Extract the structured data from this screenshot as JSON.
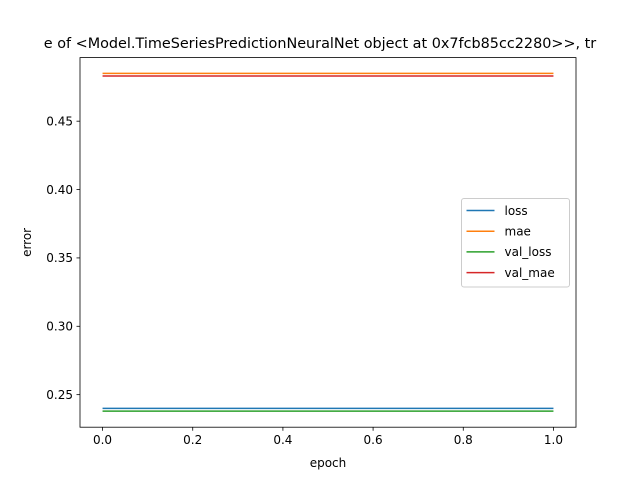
{
  "chart_data": {
    "type": "line",
    "title": "e of <Model.TimeSeriesPredictionNeuralNet object at 0x7fcb85cc2280>>, tr",
    "xlabel": "epoch",
    "ylabel": "error",
    "xlim": [
      -0.05,
      1.05
    ],
    "ylim": [
      0.2262,
      0.4965
    ],
    "x": [
      0.0,
      1.0
    ],
    "xticks": [
      0.0,
      0.2,
      0.4,
      0.6,
      0.8,
      1.0
    ],
    "xtick_labels": [
      "0.0",
      "0.2",
      "0.4",
      "0.6",
      "0.8",
      "1.0"
    ],
    "yticks": [
      0.25,
      0.3,
      0.35,
      0.4,
      0.45
    ],
    "ytick_labels": [
      "0.25",
      "0.30",
      "0.35",
      "0.40",
      "0.45"
    ],
    "grid": false,
    "legend_position": "center-right",
    "series": [
      {
        "name": "loss",
        "color": "#1f77b4",
        "values": [
          0.24,
          0.24
        ]
      },
      {
        "name": "mae",
        "color": "#ff7f0e",
        "values": [
          0.485,
          0.485
        ]
      },
      {
        "name": "val_loss",
        "color": "#2ca02c",
        "values": [
          0.238,
          0.238
        ]
      },
      {
        "name": "val_mae",
        "color": "#d62728",
        "values": [
          0.483,
          0.483
        ]
      }
    ]
  }
}
